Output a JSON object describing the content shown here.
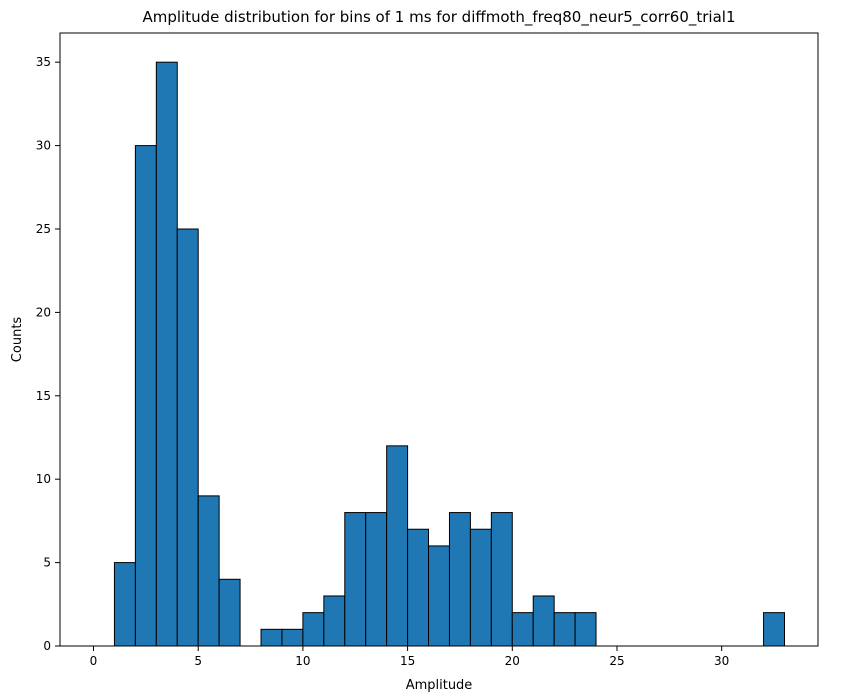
{
  "chart_data": {
    "type": "bar",
    "title": "Amplitude distribution for bins of 1 ms for diffmoth_freq80_neur5_corr60_trial1",
    "xlabel": "Amplitude",
    "ylabel": "Counts",
    "xlim": [
      -1.6,
      34.6
    ],
    "ylim": [
      0,
      36.75
    ],
    "xticks": [
      0,
      5,
      10,
      15,
      20,
      25,
      30
    ],
    "yticks": [
      0,
      5,
      10,
      15,
      20,
      25,
      30,
      35
    ],
    "bins": [
      {
        "start": 1,
        "end": 2,
        "count": 5
      },
      {
        "start": 2,
        "end": 3,
        "count": 30
      },
      {
        "start": 3,
        "end": 4,
        "count": 35
      },
      {
        "start": 4,
        "end": 5,
        "count": 25
      },
      {
        "start": 5,
        "end": 6,
        "count": 9
      },
      {
        "start": 6,
        "end": 7,
        "count": 4
      },
      {
        "start": 8,
        "end": 9,
        "count": 1
      },
      {
        "start": 9,
        "end": 10,
        "count": 1
      },
      {
        "start": 10,
        "end": 11,
        "count": 2
      },
      {
        "start": 11,
        "end": 12,
        "count": 3
      },
      {
        "start": 12,
        "end": 13,
        "count": 8
      },
      {
        "start": 13,
        "end": 14,
        "count": 8
      },
      {
        "start": 14,
        "end": 15,
        "count": 12
      },
      {
        "start": 15,
        "end": 16,
        "count": 7
      },
      {
        "start": 16,
        "end": 17,
        "count": 6
      },
      {
        "start": 17,
        "end": 18,
        "count": 8
      },
      {
        "start": 18,
        "end": 19,
        "count": 7
      },
      {
        "start": 19,
        "end": 20,
        "count": 8
      },
      {
        "start": 20,
        "end": 21,
        "count": 2
      },
      {
        "start": 21,
        "end": 22,
        "count": 3
      },
      {
        "start": 22,
        "end": 23,
        "count": 2
      },
      {
        "start": 23,
        "end": 24,
        "count": 2
      },
      {
        "start": 32,
        "end": 33,
        "count": 2
      }
    ],
    "bar_color": "#1f77b4",
    "edge_color": "#000000",
    "grid": false,
    "legend": "none"
  }
}
